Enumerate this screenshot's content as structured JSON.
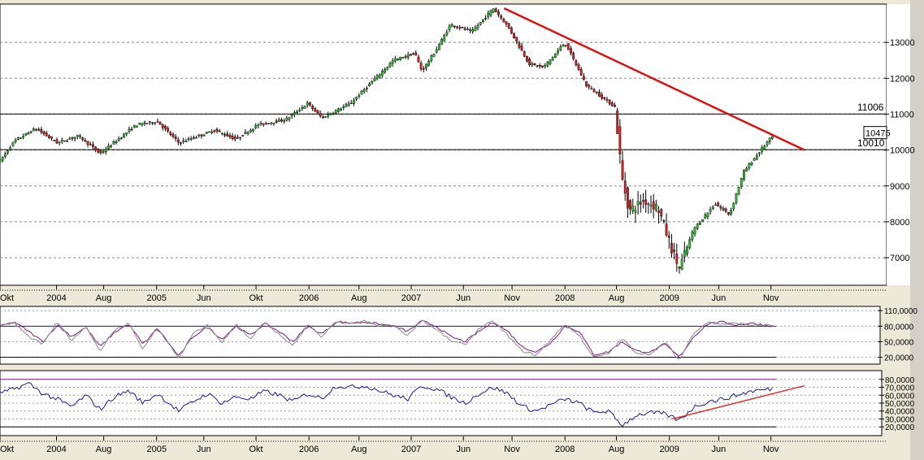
{
  "chart_data": [
    {
      "type": "candlestick",
      "title": "",
      "y_scale": "linear",
      "ylim": [
        6300,
        14000
      ],
      "y_tick_labels": [
        "7000",
        "8000",
        "9000",
        "10000",
        "11000",
        "12000",
        "13000"
      ],
      "y_ticks": [
        7000,
        8000,
        9000,
        10000,
        11000,
        12000,
        13000
      ],
      "grid": "horizontal dashed",
      "x_tick_labels": [
        "Okt",
        "2004",
        "Aug",
        "2005",
        "Jun",
        "Okt",
        "2006",
        "Aug",
        "2007",
        "Jun",
        "Nov",
        "2008",
        "Aug",
        "2009",
        "Jun",
        "Nov"
      ],
      "x_tick_pos": [
        0.0,
        0.079,
        0.145,
        0.219,
        0.285,
        0.358,
        0.432,
        0.502,
        0.575,
        0.648,
        0.716,
        0.79,
        0.862,
        0.936,
        1.005,
        1.078
      ],
      "price_anchors": [
        [
          0.0,
          9700
        ],
        [
          0.02,
          10250
        ],
        [
          0.05,
          10600
        ],
        [
          0.08,
          10200
        ],
        [
          0.11,
          10400
        ],
        [
          0.14,
          9900
        ],
        [
          0.19,
          10700
        ],
        [
          0.22,
          10800
        ],
        [
          0.25,
          10200
        ],
        [
          0.3,
          10550
        ],
        [
          0.33,
          10300
        ],
        [
          0.36,
          10700
        ],
        [
          0.4,
          10850
        ],
        [
          0.43,
          11300
        ],
        [
          0.45,
          10900
        ],
        [
          0.49,
          11300
        ],
        [
          0.52,
          11900
        ],
        [
          0.55,
          12500
        ],
        [
          0.58,
          12700
        ],
        [
          0.59,
          12200
        ],
        [
          0.61,
          12800
        ],
        [
          0.63,
          13500
        ],
        [
          0.66,
          13300
        ],
        [
          0.69,
          13950
        ],
        [
          0.71,
          13450
        ],
        [
          0.74,
          12400
        ],
        [
          0.76,
          12300
        ],
        [
          0.79,
          13000
        ],
        [
          0.82,
          11800
        ],
        [
          0.84,
          11500
        ],
        [
          0.86,
          11200
        ],
        [
          0.87,
          9200
        ],
        [
          0.88,
          8300
        ],
        [
          0.9,
          8600
        ],
        [
          0.92,
          8400
        ],
        [
          0.94,
          7200
        ],
        [
          0.95,
          6700
        ],
        [
          0.97,
          7800
        ],
        [
          1.0,
          8500
        ],
        [
          1.02,
          8200
        ],
        [
          1.04,
          9400
        ],
        [
          1.06,
          9900
        ],
        [
          1.08,
          10400
        ]
      ],
      "last_price_label": "10475",
      "last_price": 10475,
      "levels": [
        {
          "label": "11006",
          "value": 11006
        },
        {
          "label": "10010",
          "value": 10010
        }
      ],
      "trendline": {
        "from": [
          0.705,
          13950
        ],
        "to": [
          1.125,
          10000
        ],
        "color": "#dd1111"
      },
      "colors": {
        "up": "#33bb33",
        "down": "#cc2222",
        "wick": "#000000"
      }
    },
    {
      "type": "line",
      "title": "",
      "ylim": [
        10,
        115
      ],
      "y_tick_labels": [
        "110,0000",
        "80,0000",
        "50,0000",
        "20,0000"
      ],
      "y_ticks": [
        110,
        80,
        50,
        20
      ],
      "hlines": [
        80,
        20
      ],
      "series": [
        {
          "color": "#7a1a7a",
          "anchors": [
            [
              0.0,
              80
            ],
            [
              0.02,
              88
            ],
            [
              0.04,
              70
            ],
            [
              0.06,
              50
            ],
            [
              0.08,
              82
            ],
            [
              0.1,
              60
            ],
            [
              0.12,
              78
            ],
            [
              0.14,
              40
            ],
            [
              0.16,
              68
            ],
            [
              0.18,
              84
            ],
            [
              0.2,
              45
            ],
            [
              0.22,
              75
            ],
            [
              0.25,
              22
            ],
            [
              0.27,
              60
            ],
            [
              0.29,
              78
            ],
            [
              0.31,
              55
            ],
            [
              0.33,
              80
            ],
            [
              0.35,
              62
            ],
            [
              0.37,
              85
            ],
            [
              0.39,
              70
            ],
            [
              0.41,
              50
            ],
            [
              0.43,
              80
            ],
            [
              0.45,
              65
            ],
            [
              0.47,
              88
            ],
            [
              0.49,
              86
            ],
            [
              0.51,
              88
            ],
            [
              0.53,
              84
            ],
            [
              0.55,
              80
            ],
            [
              0.57,
              70
            ],
            [
              0.59,
              90
            ],
            [
              0.61,
              80
            ],
            [
              0.63,
              60
            ],
            [
              0.65,
              50
            ],
            [
              0.67,
              70
            ],
            [
              0.69,
              88
            ],
            [
              0.71,
              70
            ],
            [
              0.73,
              40
            ],
            [
              0.75,
              30
            ],
            [
              0.77,
              48
            ],
            [
              0.79,
              80
            ],
            [
              0.81,
              70
            ],
            [
              0.83,
              25
            ],
            [
              0.85,
              30
            ],
            [
              0.87,
              50
            ],
            [
              0.89,
              32
            ],
            [
              0.91,
              30
            ],
            [
              0.93,
              45
            ],
            [
              0.95,
              20
            ],
            [
              0.97,
              60
            ],
            [
              0.99,
              85
            ],
            [
              1.01,
              88
            ],
            [
              1.03,
              82
            ],
            [
              1.05,
              86
            ],
            [
              1.08,
              80
            ]
          ]
        },
        {
          "color": "#888888",
          "anchors": [
            [
              0.0,
              82
            ],
            [
              0.02,
              86
            ],
            [
              0.04,
              60
            ],
            [
              0.06,
              45
            ],
            [
              0.08,
              88
            ],
            [
              0.1,
              52
            ],
            [
              0.12,
              80
            ],
            [
              0.14,
              32
            ],
            [
              0.16,
              72
            ],
            [
              0.18,
              86
            ],
            [
              0.2,
              35
            ],
            [
              0.22,
              78
            ],
            [
              0.25,
              18
            ],
            [
              0.27,
              66
            ],
            [
              0.29,
              82
            ],
            [
              0.31,
              48
            ],
            [
              0.33,
              84
            ],
            [
              0.35,
              55
            ],
            [
              0.37,
              88
            ],
            [
              0.39,
              64
            ],
            [
              0.41,
              42
            ],
            [
              0.43,
              84
            ],
            [
              0.45,
              58
            ],
            [
              0.47,
              90
            ],
            [
              0.49,
              84
            ],
            [
              0.51,
              90
            ],
            [
              0.53,
              80
            ],
            [
              0.55,
              82
            ],
            [
              0.57,
              62
            ],
            [
              0.59,
              92
            ],
            [
              0.61,
              74
            ],
            [
              0.63,
              52
            ],
            [
              0.65,
              44
            ],
            [
              0.67,
              76
            ],
            [
              0.69,
              90
            ],
            [
              0.71,
              62
            ],
            [
              0.73,
              32
            ],
            [
              0.75,
              24
            ],
            [
              0.77,
              54
            ],
            [
              0.79,
              84
            ],
            [
              0.81,
              62
            ],
            [
              0.83,
              20
            ],
            [
              0.85,
              26
            ],
            [
              0.87,
              56
            ],
            [
              0.89,
              28
            ],
            [
              0.91,
              26
            ],
            [
              0.93,
              50
            ],
            [
              0.95,
              14
            ],
            [
              0.97,
              68
            ],
            [
              0.99,
              88
            ],
            [
              1.01,
              84
            ],
            [
              1.03,
              86
            ],
            [
              1.05,
              82
            ],
            [
              1.08,
              82
            ]
          ]
        }
      ]
    },
    {
      "type": "line",
      "title": "",
      "ylim": [
        12,
        88
      ],
      "y_tick_labels": [
        "80,0000",
        "70,0000",
        "60,0000",
        "50,0000",
        "40,0000",
        "30,0000",
        "20,0000"
      ],
      "y_ticks": [
        80,
        70,
        60,
        50,
        40,
        30,
        20
      ],
      "hlines": [
        80,
        20
      ],
      "series": [
        {
          "color": "#1a1a99",
          "anchors": [
            [
              0.0,
              62
            ],
            [
              0.02,
              68
            ],
            [
              0.04,
              75
            ],
            [
              0.06,
              62
            ],
            [
              0.08,
              55
            ],
            [
              0.1,
              45
            ],
            [
              0.12,
              60
            ],
            [
              0.14,
              42
            ],
            [
              0.16,
              58
            ],
            [
              0.18,
              66
            ],
            [
              0.2,
              50
            ],
            [
              0.22,
              62
            ],
            [
              0.25,
              40
            ],
            [
              0.27,
              52
            ],
            [
              0.29,
              62
            ],
            [
              0.31,
              50
            ],
            [
              0.33,
              58
            ],
            [
              0.35,
              55
            ],
            [
              0.37,
              65
            ],
            [
              0.39,
              60
            ],
            [
              0.41,
              52
            ],
            [
              0.43,
              62
            ],
            [
              0.45,
              56
            ],
            [
              0.47,
              72
            ],
            [
              0.49,
              70
            ],
            [
              0.51,
              72
            ],
            [
              0.53,
              66
            ],
            [
              0.55,
              60
            ],
            [
              0.57,
              55
            ],
            [
              0.59,
              72
            ],
            [
              0.61,
              68
            ],
            [
              0.63,
              58
            ],
            [
              0.65,
              50
            ],
            [
              0.67,
              62
            ],
            [
              0.69,
              70
            ],
            [
              0.71,
              62
            ],
            [
              0.73,
              46
            ],
            [
              0.75,
              40
            ],
            [
              0.77,
              48
            ],
            [
              0.79,
              55
            ],
            [
              0.81,
              50
            ],
            [
              0.83,
              38
            ],
            [
              0.85,
              40
            ],
            [
              0.87,
              22
            ],
            [
              0.89,
              35
            ],
            [
              0.91,
              38
            ],
            [
              0.93,
              36
            ],
            [
              0.95,
              28
            ],
            [
              0.97,
              45
            ],
            [
              0.99,
              52
            ],
            [
              1.01,
              55
            ],
            [
              1.03,
              60
            ],
            [
              1.05,
              65
            ],
            [
              1.08,
              68
            ]
          ]
        }
      ],
      "trendline": {
        "from": [
          0.94,
          30
        ],
        "to": [
          1.125,
          72
        ],
        "color": "#dd3333"
      }
    }
  ],
  "bottom_axis_labels": [
    "Okt",
    "2004",
    "Aug",
    "2005",
    "Jun",
    "Okt",
    "2006",
    "Aug",
    "2007",
    "Jun",
    "Nov",
    "2008",
    "Aug",
    "2009",
    "Jun",
    "Nov"
  ]
}
